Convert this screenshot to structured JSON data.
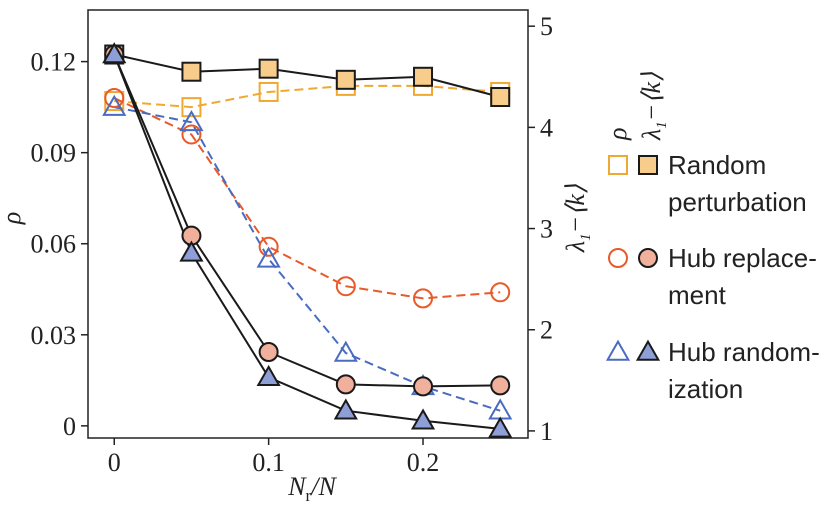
{
  "chart_data": {
    "type": "line",
    "x": [
      0,
      0.05,
      0.1,
      0.15,
      0.2,
      0.25
    ],
    "xlabel": "N_r/N",
    "x_ticks": [
      "0",
      "0.1",
      "0.2"
    ],
    "xlim": [
      -0.017,
      0.268
    ],
    "left_axis": {
      "label": "ρ",
      "ticks": [
        "0",
        "0.03",
        "0.06",
        "0.09",
        "0.12"
      ],
      "ylim": [
        -0.004,
        0.137
      ]
    },
    "right_axis": {
      "label": "λ₁−⟨k⟩",
      "ticks": [
        "1",
        "2",
        "3",
        "4",
        "5"
      ],
      "ylim": [
        0.93,
        5.16
      ]
    },
    "legend_headers": [
      "ρ",
      "λ₁−⟨k⟩"
    ],
    "series": [
      {
        "name": "Random perturbation",
        "axis": "left",
        "marker": "square",
        "fill": "open",
        "style": "dashed",
        "color": "#f0a830",
        "values": [
          0.107,
          0.105,
          0.11,
          0.112,
          0.112,
          0.11
        ]
      },
      {
        "name": "Random perturbation",
        "axis": "right",
        "marker": "square",
        "fill": "filled",
        "style": "solid",
        "color": "#f8cd8c",
        "values": [
          4.72,
          4.55,
          4.58,
          4.47,
          4.5,
          4.3
        ]
      },
      {
        "name": "Hub replacement",
        "axis": "left",
        "marker": "circle",
        "fill": "open",
        "style": "dashed",
        "color": "#e85a2a",
        "values": [
          0.108,
          0.096,
          0.059,
          0.046,
          0.042,
          0.044
        ]
      },
      {
        "name": "Hub replacement",
        "axis": "right",
        "marker": "circle",
        "fill": "filled",
        "style": "solid",
        "color": "#f0b09c",
        "values": [
          4.72,
          2.93,
          1.78,
          1.46,
          1.44,
          1.45
        ]
      },
      {
        "name": "Hub randomization",
        "axis": "left",
        "marker": "triangle",
        "fill": "open",
        "style": "dashed",
        "color": "#4a6cc0",
        "values": [
          0.105,
          0.1,
          0.055,
          0.024,
          0.013,
          0.005
        ]
      },
      {
        "name": "Hub randomization",
        "axis": "right",
        "marker": "triangle",
        "fill": "filled",
        "style": "solid",
        "color": "#8d9fd6",
        "values": [
          4.72,
          2.76,
          1.53,
          1.2,
          1.1,
          1.02
        ]
      }
    ],
    "legend": [
      {
        "label_lines": [
          "Random",
          "perturbation"
        ],
        "open_color": "#f0a830",
        "filled_color": "#f8cd8c",
        "marker": "square"
      },
      {
        "label_lines": [
          "Hub replace-",
          "ment"
        ],
        "open_color": "#e85a2a",
        "filled_color": "#f0b09c",
        "marker": "circle"
      },
      {
        "label_lines": [
          "Hub random-",
          "ization"
        ],
        "open_color": "#4a6cc0",
        "filled_color": "#8d9fd6",
        "marker": "triangle"
      }
    ],
    "legend_position": "right"
  }
}
